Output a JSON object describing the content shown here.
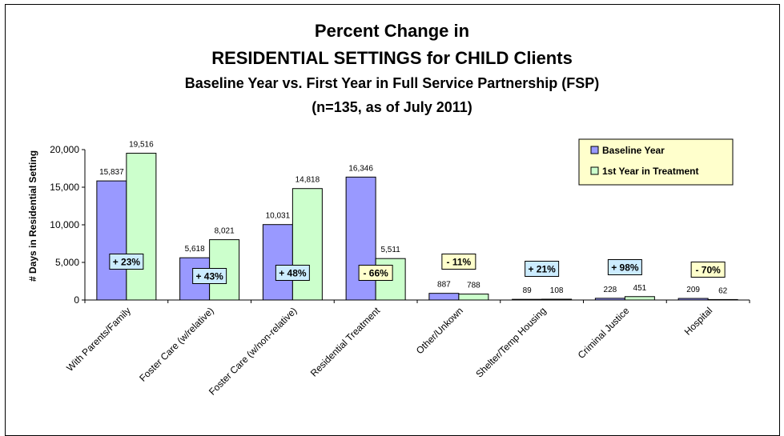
{
  "chart_data": {
    "type": "bar",
    "title": "Percent Change in",
    "title_line2": "RESIDENTIAL SETTINGS for CHILD Clients",
    "subtitle": "Baseline Year vs. First Year in Full Service Partnership (FSP)",
    "subtitle_line2": "(n=135, as of July 2011)",
    "xlabel": "",
    "ylabel": "# Days in Residential Setting",
    "ylim": [
      0,
      20000
    ],
    "yticks": [
      "0",
      "5,000",
      "10,000",
      "15,000",
      "20,000"
    ],
    "grid": false,
    "legend_position": "top-right",
    "categories": [
      "With Parents/Family",
      "Foster Care (w/relative)",
      "Foster Care (w/non-relative)",
      "Residential Treatment",
      "Other/Unkown",
      "Shelter/Temp Housing",
      "Criminal Justice",
      "Hospital"
    ],
    "series": [
      {
        "name": "Baseline Year",
        "color": "#9999ff",
        "values": [
          15837,
          5618,
          10031,
          16346,
          887,
          89,
          228,
          209
        ],
        "labels": [
          "15,837",
          "5,618",
          "10,031",
          "16,346",
          "887",
          "89",
          "228",
          "209"
        ]
      },
      {
        "name": "1st Year in Treatment",
        "color": "#ccffcc",
        "values": [
          19516,
          8021,
          14818,
          5511,
          788,
          108,
          451,
          62
        ],
        "labels": [
          "19,516",
          "8,021",
          "14,818",
          "5,511",
          "788",
          "108",
          "451",
          "62"
        ]
      }
    ],
    "annotations": [
      {
        "text": "+ 23%",
        "color": "#ccecff"
      },
      {
        "text": "+ 43%",
        "color": "#ccecff"
      },
      {
        "text": "+ 48%",
        "color": "#ccecff"
      },
      {
        "text": "- 66%",
        "color": "#ffffcc"
      },
      {
        "text": "- 11%",
        "color": "#ffffcc"
      },
      {
        "text": "+ 21%",
        "color": "#ccecff"
      },
      {
        "text": "+ 98%",
        "color": "#ccecff"
      },
      {
        "text": "- 70%",
        "color": "#ffffcc"
      }
    ],
    "legend_bg": "#ffffcc"
  }
}
